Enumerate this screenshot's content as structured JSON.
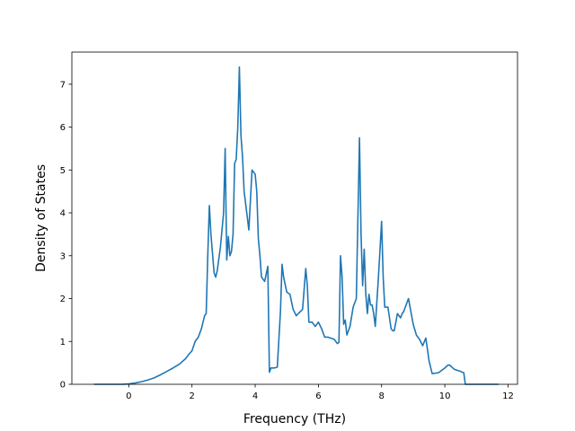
{
  "chart_data": {
    "type": "line",
    "title": "",
    "xlabel": "Frequency (THz)",
    "ylabel": "Density of States",
    "xlim": [
      -1.8,
      12.3
    ],
    "ylim": [
      0,
      7.75
    ],
    "xticks": [
      0,
      2,
      4,
      6,
      8,
      10,
      12
    ],
    "yticks": [
      0,
      1,
      2,
      3,
      4,
      5,
      6,
      7
    ],
    "grid": false,
    "legend": "none",
    "colors": {
      "line": "#1f77b4",
      "axes": "#000000",
      "background": "#ffffff"
    },
    "series": [
      {
        "x": [
          -1.1,
          -0.6,
          -0.2,
          0.0,
          0.2,
          0.4,
          0.6,
          0.8,
          1.0,
          1.2,
          1.4,
          1.6,
          1.8,
          1.9,
          2.0,
          2.1,
          2.2,
          2.3,
          2.4,
          2.45,
          2.5,
          2.55,
          2.6,
          2.7,
          2.75,
          2.8,
          2.9,
          3.0,
          3.05,
          3.1,
          3.15,
          3.2,
          3.25,
          3.3,
          3.35,
          3.4,
          3.45,
          3.5,
          3.55,
          3.6,
          3.65,
          3.7,
          3.8,
          3.9,
          4.0,
          4.05,
          4.1,
          4.15,
          4.2,
          4.3,
          4.4,
          4.45,
          4.5,
          4.55,
          4.6,
          4.7,
          4.8,
          4.85,
          4.9,
          5.0,
          5.1,
          5.2,
          5.3,
          5.5,
          5.6,
          5.65,
          5.7,
          5.8,
          5.9,
          6.0,
          6.1,
          6.2,
          6.3,
          6.5,
          6.6,
          6.65,
          6.7,
          6.75,
          6.8,
          6.85,
          6.9,
          7.0,
          7.1,
          7.2,
          7.3,
          7.35,
          7.4,
          7.45,
          7.5,
          7.55,
          7.6,
          7.65,
          7.7,
          7.75,
          7.8,
          7.9,
          8.0,
          8.05,
          8.1,
          8.15,
          8.2,
          8.3,
          8.35,
          8.4,
          8.5,
          8.6,
          8.65,
          8.7,
          8.8,
          8.85,
          8.9,
          9.0,
          9.1,
          9.2,
          9.3,
          9.4,
          9.5,
          9.6,
          9.8,
          10.0,
          10.1,
          10.15,
          10.3,
          10.5,
          10.6,
          10.65,
          10.7,
          11.7
        ],
        "y": [
          0.0,
          0.0,
          0.0,
          0.01,
          0.03,
          0.06,
          0.1,
          0.15,
          0.22,
          0.3,
          0.38,
          0.47,
          0.6,
          0.7,
          0.78,
          1.0,
          1.1,
          1.3,
          1.6,
          1.65,
          3.0,
          4.17,
          3.5,
          2.6,
          2.5,
          2.65,
          3.2,
          4.0,
          5.5,
          2.9,
          3.45,
          3.0,
          3.1,
          3.5,
          5.15,
          5.25,
          6.0,
          7.4,
          5.8,
          5.3,
          4.5,
          4.2,
          3.6,
          5.0,
          4.9,
          4.5,
          3.4,
          3.0,
          2.5,
          2.4,
          2.75,
          0.28,
          0.38,
          0.38,
          0.38,
          0.4,
          1.7,
          2.8,
          2.5,
          2.15,
          2.1,
          1.75,
          1.6,
          1.75,
          2.7,
          2.3,
          1.45,
          1.45,
          1.35,
          1.45,
          1.3,
          1.1,
          1.1,
          1.05,
          0.95,
          0.98,
          3.0,
          2.5,
          1.4,
          1.5,
          1.15,
          1.35,
          1.8,
          2.0,
          5.75,
          3.5,
          2.3,
          3.15,
          2.1,
          1.65,
          2.1,
          1.85,
          1.85,
          1.65,
          1.35,
          2.5,
          3.8,
          2.5,
          1.8,
          1.8,
          1.8,
          1.3,
          1.25,
          1.25,
          1.65,
          1.55,
          1.65,
          1.7,
          1.9,
          2.0,
          1.8,
          1.4,
          1.15,
          1.05,
          0.9,
          1.08,
          0.55,
          0.25,
          0.27,
          0.38,
          0.45,
          0.45,
          0.35,
          0.3,
          0.27,
          0.0,
          0.0,
          0.0
        ]
      }
    ]
  }
}
